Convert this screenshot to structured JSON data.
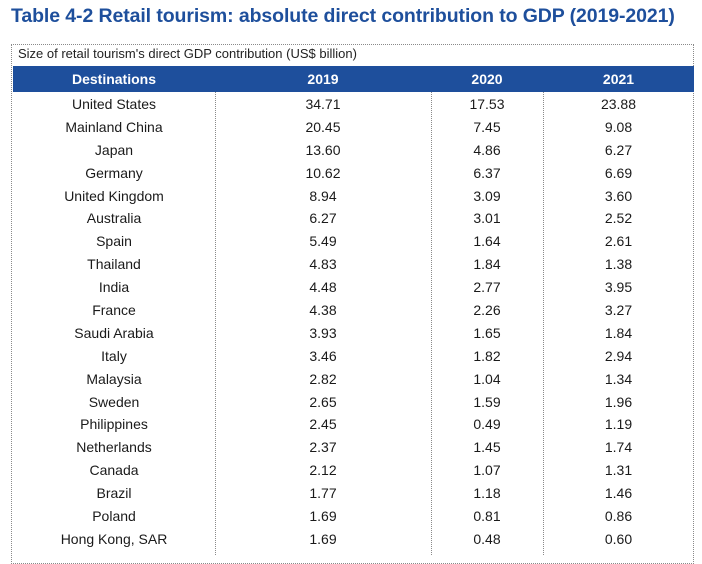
{
  "title": "Table 4-2 Retail tourism: absolute direct contribution to GDP (2019-2021)",
  "subtitle": "Size of retail tourism's direct GDP contribution (US$ billion)",
  "columns": [
    "Destinations",
    "2019",
    "2020",
    "2021"
  ],
  "rows": [
    [
      "United States",
      "34.71",
      "17.53",
      "23.88"
    ],
    [
      "Mainland China",
      "20.45",
      "7.45",
      "9.08"
    ],
    [
      "Japan",
      "13.60",
      "4.86",
      "6.27"
    ],
    [
      "Germany",
      "10.62",
      "6.37",
      "6.69"
    ],
    [
      "United Kingdom",
      "8.94",
      "3.09",
      "3.60"
    ],
    [
      "Australia",
      "6.27",
      "3.01",
      "2.52"
    ],
    [
      "Spain",
      "5.49",
      "1.64",
      "2.61"
    ],
    [
      "Thailand",
      "4.83",
      "1.84",
      "1.38"
    ],
    [
      "India",
      "4.48",
      "2.77",
      "3.95"
    ],
    [
      "France",
      "4.38",
      "2.26",
      "3.27"
    ],
    [
      "Saudi Arabia",
      "3.93",
      "1.65",
      "1.84"
    ],
    [
      "Italy",
      "3.46",
      "1.82",
      "2.94"
    ],
    [
      "Malaysia",
      "2.82",
      "1.04",
      "1.34"
    ],
    [
      "Sweden",
      "2.65",
      "1.59",
      "1.96"
    ],
    [
      "Philippines",
      "2.45",
      "0.49",
      "1.19"
    ],
    [
      "Netherlands",
      "2.37",
      "1.45",
      "1.74"
    ],
    [
      "Canada",
      "2.12",
      "1.07",
      "1.31"
    ],
    [
      "Brazil",
      "1.77",
      "1.18",
      "1.46"
    ],
    [
      "Poland",
      "1.69",
      "0.81",
      "0.86"
    ],
    [
      "Hong Kong, SAR",
      "1.69",
      "0.48",
      "0.60"
    ]
  ],
  "colors": {
    "title": "#1e4f9c",
    "header_bg": "#1e4f9c",
    "header_text": "#ffffff"
  }
}
